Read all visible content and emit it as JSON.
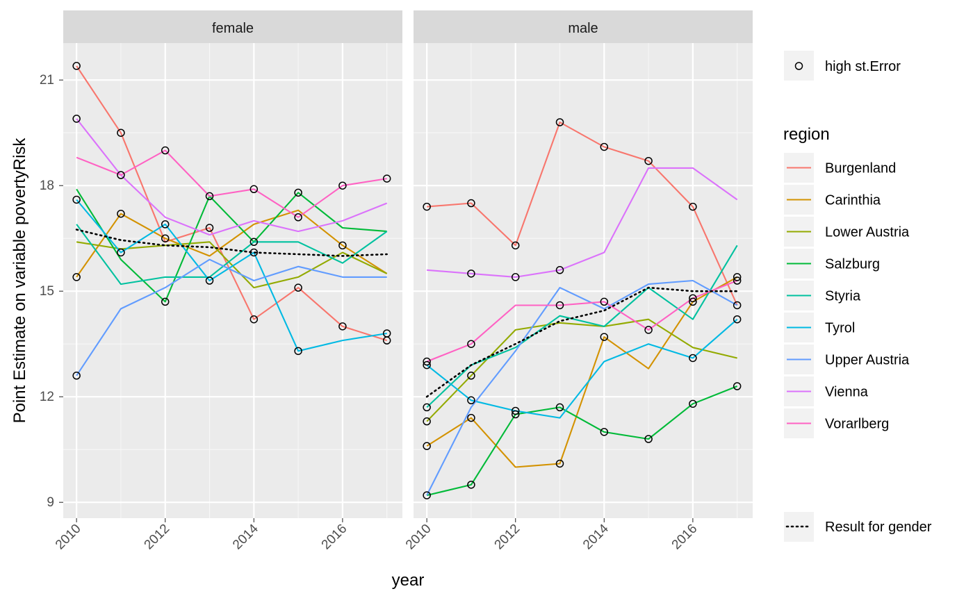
{
  "chart_data": {
    "type": "line",
    "facet_variable": "gender",
    "panels": [
      "female",
      "male"
    ],
    "xlabel": "year",
    "ylabel": "Point Estimate on variable povertyRisk",
    "xlim": [
      2009.7,
      2017.35
    ],
    "ylim": [
      8.55,
      22.05
    ],
    "x_ticks": [
      2010,
      2012,
      2014,
      2016
    ],
    "y_ticks": [
      9,
      12,
      15,
      18,
      21
    ],
    "years": [
      2010,
      2011,
      2012,
      2013,
      2014,
      2015,
      2016,
      2017
    ],
    "grid": true,
    "legend_position": "right",
    "legend": {
      "marker_entry": "high st.Error",
      "region_title": "region",
      "gender_entry": "Result for gender"
    },
    "series": [
      {
        "name": "Burgenland",
        "color": "#F8766D",
        "female": [
          21.4,
          19.5,
          16.4,
          16.8,
          14.2,
          15.1,
          14.0,
          13.6
        ],
        "male": [
          17.4,
          17.5,
          16.3,
          19.8,
          19.1,
          18.7,
          17.4,
          14.6
        ],
        "female_high_se": [
          true,
          true,
          false,
          true,
          true,
          true,
          true,
          true
        ],
        "male_high_se": [
          true,
          true,
          true,
          true,
          true,
          true,
          true,
          true
        ]
      },
      {
        "name": "Carinthia",
        "color": "#D39200",
        "female": [
          15.4,
          17.2,
          16.5,
          16.0,
          16.9,
          17.3,
          16.3,
          15.5
        ],
        "male": [
          10.6,
          11.4,
          10.0,
          10.1,
          13.7,
          12.8,
          14.7,
          15.4
        ],
        "female_high_se": [
          true,
          true,
          true,
          false,
          false,
          false,
          true,
          false
        ],
        "male_high_se": [
          true,
          true,
          false,
          true,
          true,
          false,
          true,
          true
        ]
      },
      {
        "name": "Lower Austria",
        "color": "#93AA00",
        "female": [
          16.4,
          16.2,
          16.3,
          16.4,
          15.1,
          15.4,
          16.1,
          15.5
        ],
        "male": [
          11.3,
          12.6,
          13.9,
          14.1,
          14.0,
          14.2,
          13.4,
          13.1
        ],
        "female_high_se": [
          false,
          false,
          false,
          false,
          false,
          false,
          false,
          false
        ],
        "male_high_se": [
          true,
          true,
          false,
          false,
          false,
          false,
          false,
          false
        ]
      },
      {
        "name": "Salzburg",
        "color": "#00BA38",
        "female": [
          17.9,
          15.9,
          14.7,
          17.7,
          16.4,
          17.8,
          16.8,
          16.7
        ],
        "male": [
          9.2,
          9.5,
          11.5,
          11.7,
          11.0,
          10.8,
          11.8,
          12.3
        ],
        "female_high_se": [
          false,
          false,
          true,
          false,
          true,
          true,
          false,
          false
        ],
        "male_high_se": [
          true,
          true,
          true,
          true,
          true,
          true,
          true,
          true
        ]
      },
      {
        "name": "Styria",
        "color": "#00C19F",
        "female": [
          16.9,
          15.2,
          15.4,
          15.4,
          16.4,
          16.4,
          15.8,
          16.7
        ],
        "male": [
          11.7,
          12.9,
          13.4,
          14.3,
          14.0,
          15.1,
          14.2,
          16.3
        ],
        "female_high_se": [
          false,
          false,
          false,
          false,
          false,
          false,
          false,
          false
        ],
        "male_high_se": [
          true,
          false,
          false,
          false,
          false,
          false,
          false,
          false
        ]
      },
      {
        "name": "Tyrol",
        "color": "#00B9E3",
        "female": [
          17.6,
          16.1,
          16.9,
          15.3,
          16.1,
          13.3,
          13.6,
          13.8
        ],
        "male": [
          12.9,
          11.9,
          11.6,
          11.4,
          13.0,
          13.5,
          13.1,
          14.2
        ],
        "female_high_se": [
          true,
          true,
          true,
          true,
          true,
          true,
          false,
          true
        ],
        "male_high_se": [
          true,
          true,
          true,
          false,
          false,
          false,
          true,
          true
        ]
      },
      {
        "name": "Upper Austria",
        "color": "#619CFF",
        "female": [
          12.6,
          14.5,
          15.1,
          15.9,
          15.3,
          15.7,
          15.4,
          15.4
        ],
        "male": [
          9.2,
          11.7,
          13.3,
          15.1,
          14.5,
          15.2,
          15.3,
          14.6
        ],
        "female_high_se": [
          true,
          false,
          false,
          false,
          false,
          false,
          false,
          false
        ],
        "male_high_se": [
          false,
          false,
          false,
          false,
          false,
          false,
          false,
          false
        ]
      },
      {
        "name": "Vienna",
        "color": "#DB72FB",
        "female": [
          19.9,
          18.3,
          17.1,
          16.6,
          17.0,
          16.7,
          17.0,
          17.5
        ],
        "male": [
          15.6,
          15.5,
          15.4,
          15.6,
          16.1,
          18.5,
          18.5,
          17.6
        ],
        "female_high_se": [
          true,
          false,
          false,
          false,
          false,
          false,
          false,
          false
        ],
        "male_high_se": [
          false,
          true,
          true,
          true,
          false,
          false,
          false,
          false
        ]
      },
      {
        "name": "Vorarlberg",
        "color": "#FF61C3",
        "female": [
          18.8,
          18.3,
          19.0,
          17.7,
          17.9,
          17.1,
          18.0,
          18.2
        ],
        "male": [
          13.0,
          13.5,
          14.6,
          14.6,
          14.7,
          13.9,
          14.8,
          15.3
        ],
        "female_high_se": [
          false,
          true,
          true,
          true,
          true,
          true,
          true,
          true
        ],
        "male_high_se": [
          true,
          true,
          false,
          true,
          true,
          true,
          true,
          true
        ]
      }
    ],
    "gender_result": {
      "female": [
        16.75,
        16.45,
        16.3,
        16.25,
        16.1,
        16.05,
        16.0,
        16.05
      ],
      "male": [
        12.0,
        12.9,
        13.5,
        14.15,
        14.45,
        15.1,
        15.0,
        15.0
      ]
    }
  }
}
